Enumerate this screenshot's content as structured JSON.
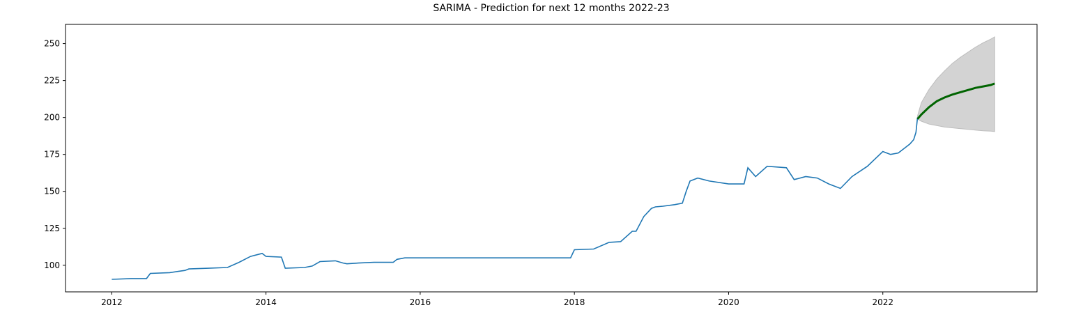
{
  "chart_data": {
    "type": "line",
    "title": "SARIMA - Prediction for next 12 months 2022-23",
    "xlabel": "",
    "ylabel": "",
    "xlim": [
      2011.4,
      2024.0
    ],
    "ylim": [
      82,
      263
    ],
    "xticks": [
      2012,
      2014,
      2016,
      2018,
      2020,
      2022
    ],
    "xtick_labels": [
      "2012",
      "2014",
      "2016",
      "2018",
      "2020",
      "2022"
    ],
    "yticks": [
      100,
      125,
      150,
      175,
      200,
      225,
      250
    ],
    "ytick_labels": [
      "100",
      "125",
      "150",
      "175",
      "200",
      "225",
      "250"
    ],
    "grid": false,
    "legend": "none",
    "colors": {
      "history": "#1f77b4",
      "forecast": "#006400",
      "interval": "#d3d3d3",
      "interval_edge": "#bdbdbd"
    },
    "series": [
      {
        "role": "history",
        "x": [
          2012.0,
          2012.25,
          2012.45,
          2012.5,
          2012.75,
          2012.95,
          2013.0,
          2013.25,
          2013.5,
          2013.65,
          2013.8,
          2013.95,
          2014.0,
          2014.2,
          2014.25,
          2014.5,
          2014.6,
          2014.7,
          2014.9,
          2015.0,
          2015.05,
          2015.2,
          2015.4,
          2015.65,
          2015.7,
          2015.8,
          2016.0,
          2016.5,
          2017.0,
          2017.5,
          2017.8,
          2017.95,
          2018.0,
          2018.25,
          2018.45,
          2018.6,
          2018.75,
          2018.8,
          2018.9,
          2019.0,
          2019.05,
          2019.15,
          2019.3,
          2019.4,
          2019.45,
          2019.5,
          2019.6,
          2019.75,
          2020.0,
          2020.2,
          2020.25,
          2020.35,
          2020.5,
          2020.75,
          2020.85,
          2021.0,
          2021.15,
          2021.3,
          2021.45,
          2021.6,
          2021.8,
          2021.9,
          2022.0,
          2022.1,
          2022.2,
          2022.3,
          2022.35,
          2022.4,
          2022.43,
          2022.45
        ],
        "y": [
          90.5,
          91,
          91,
          94.5,
          95,
          96.5,
          97.5,
          98,
          98.5,
          102,
          106,
          108,
          106,
          105.5,
          98,
          98.5,
          99.5,
          102.5,
          103,
          101.5,
          101,
          101.5,
          102,
          102,
          104,
          105,
          105,
          105,
          105,
          105,
          105,
          105,
          110.5,
          111,
          115.5,
          116,
          123,
          123,
          133,
          138.5,
          139.5,
          140,
          141,
          142,
          150,
          157,
          159,
          157,
          155,
          155,
          166,
          160,
          167,
          166,
          158,
          160,
          159,
          155,
          152,
          160,
          167,
          172,
          177,
          175,
          176,
          180,
          182,
          185,
          190,
          200
        ]
      },
      {
        "role": "forecast",
        "x": [
          2022.45,
          2022.5,
          2022.6,
          2022.7,
          2022.8,
          2022.9,
          2023.0,
          2023.1,
          2023.2,
          2023.3,
          2023.4,
          2023.45
        ],
        "y": [
          199,
          202,
          207,
          211,
          213.5,
          215.5,
          217,
          218.5,
          220,
          221,
          222,
          223
        ],
        "lower": [
          199,
          197.5,
          195.5,
          194.5,
          193.5,
          193,
          192.5,
          192,
          191.5,
          191,
          190.8,
          190.5
        ],
        "upper": [
          201,
          210,
          219,
          226,
          231.5,
          236.5,
          240.5,
          244,
          247.5,
          250.5,
          253,
          254.5
        ]
      }
    ]
  }
}
